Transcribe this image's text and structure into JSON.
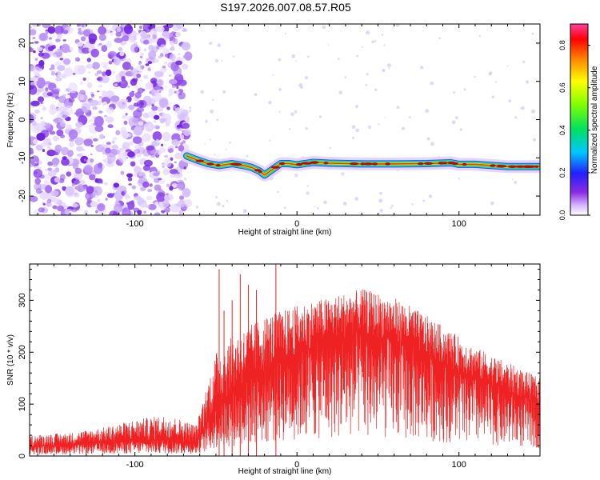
{
  "title": "S197.2026.007.08.57.R05",
  "colors": {
    "noise": "#7b2ff0",
    "snr_line": "#ee2222",
    "ridge_core": "#cc0000"
  },
  "chart_data": [
    {
      "type": "heatmap",
      "title": "S197.2026.007.08.57.R05",
      "xlabel": "Height of straight line (km)",
      "ylabel": "Frequency (Hz)",
      "xlim": [
        -165,
        150
      ],
      "ylim": [
        -25,
        25
      ],
      "xticks": [
        -100,
        0,
        100
      ],
      "yticks": [
        -20,
        -10,
        0,
        10,
        20
      ],
      "noise_region_x": [
        -165,
        -67
      ],
      "ridge": {
        "x": [
          -68,
          -62,
          -55,
          -48,
          -40,
          -33,
          -28,
          -23,
          -20,
          -15,
          -10,
          -5,
          0,
          10,
          20,
          40,
          60,
          80,
          95,
          100,
          110,
          130,
          150
        ],
        "frequency": [
          -9.5,
          -10.5,
          -11.5,
          -12,
          -11.5,
          -12,
          -12.5,
          -13.5,
          -14.5,
          -13,
          -11.5,
          -11.5,
          -11.8,
          -11.2,
          -11.4,
          -11.6,
          -11.6,
          -11.5,
          -11.3,
          -11.7,
          -11.7,
          -12.3,
          -12.3
        ]
      },
      "colorbar": {
        "label": "Normalized spectral amplitude",
        "range": [
          0,
          0.9
        ],
        "ticks": [
          "0.0",
          "0.2",
          "0.4",
          "0.6",
          "0.8"
        ]
      }
    },
    {
      "type": "line",
      "xlabel": "Height of straight line (km)",
      "ylabel": "SNR (10 * v/v)",
      "xlim": [
        -165,
        150
      ],
      "ylim": [
        0,
        370
      ],
      "xticks": [
        -100,
        0,
        100
      ],
      "yticks": [
        0,
        100,
        200,
        300
      ],
      "envelope": {
        "x": [
          -165,
          -140,
          -120,
          -100,
          -80,
          -62,
          -58,
          -50,
          -40,
          -30,
          -20,
          -10,
          0,
          10,
          20,
          30,
          40,
          50,
          60,
          70,
          80,
          90,
          100,
          110,
          120,
          130,
          140,
          150
        ],
        "median": [
          18,
          20,
          24,
          28,
          30,
          24,
          45,
          90,
          120,
          140,
          160,
          175,
          195,
          210,
          220,
          228,
          232,
          225,
          215,
          205,
          190,
          175,
          160,
          145,
          135,
          120,
          110,
          100
        ],
        "upper": [
          40,
          45,
          55,
          70,
          80,
          60,
          110,
          200,
          230,
          250,
          270,
          280,
          290,
          300,
          305,
          315,
          322,
          315,
          305,
          290,
          270,
          250,
          230,
          210,
          195,
          180,
          165,
          150
        ]
      },
      "spikes": [
        {
          "x": -48,
          "y": 360
        },
        {
          "x": -45,
          "y": 280
        },
        {
          "x": -40,
          "y": 300
        },
        {
          "x": -35,
          "y": 350
        },
        {
          "x": -30,
          "y": 330
        },
        {
          "x": -25,
          "y": 320
        },
        {
          "x": -13,
          "y": 375
        }
      ]
    }
  ]
}
